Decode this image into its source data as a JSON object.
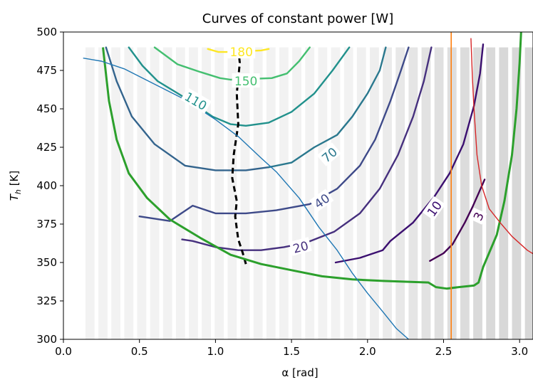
{
  "chart_data": {
    "type": "line",
    "title": "Curves of constant power [W]",
    "xlabel": "α [rad]",
    "ylabel_main": "T",
    "ylabel_sub": "h",
    "ylabel_unit": " [K]",
    "xlim": [
      0.0,
      3.1
    ],
    "ylim": [
      300,
      500
    ],
    "xticks": [
      0.0,
      0.5,
      1.0,
      1.5,
      2.0,
      2.5,
      3.0
    ],
    "xtick_labels": [
      "0.0",
      "0.5",
      "1.0",
      "1.5",
      "2.0",
      "2.5",
      "3.0"
    ],
    "yticks": [
      300,
      325,
      350,
      375,
      400,
      425,
      450,
      475,
      500
    ],
    "ytick_labels": [
      "300",
      "325",
      "350",
      "375",
      "400",
      "425",
      "450",
      "475",
      "500"
    ],
    "background_bars": {
      "x": [
        0.175,
        0.26,
        0.345,
        0.43,
        0.515,
        0.6,
        0.685,
        0.77,
        0.855,
        0.94,
        1.025,
        1.11,
        1.195,
        1.28,
        1.365,
        1.45,
        1.535,
        1.62,
        1.705,
        1.79,
        1.875,
        1.96,
        2.045,
        2.13,
        2.215,
        2.3,
        2.385,
        2.47,
        2.555,
        2.64,
        2.725,
        2.81,
        2.895,
        2.98,
        3.065
      ],
      "top": 490,
      "shades": [
        "#f2f2f2",
        "#f2f2f2",
        "#f2f2f2",
        "#f2f2f2",
        "#f2f2f2",
        "#f2f2f2",
        "#f2f2f2",
        "#f2f2f2",
        "#f2f2f2",
        "#f2f2f2",
        "#f2f2f2",
        "#f2f2f2",
        "#f2f2f2",
        "#f2f2f2",
        "#f2f2f2",
        "#f2f2f2",
        "#f2f2f2",
        "#f2f2f2",
        "#f2f2f2",
        "#f2f2f2",
        "#f2f2f2",
        "#f0f0f0",
        "#eeeeee",
        "#ebebeb",
        "#e8e8e8",
        "#e5e5e5",
        "#e2e2e2",
        "#e0e0e0",
        "#dedede",
        "#dcdcdc",
        "#dadada",
        "#d9d9d9",
        "#d8d8d8",
        "#d8d8d8",
        "#d8d8d8"
      ]
    },
    "contours": [
      {
        "label": "3",
        "color": "#440154",
        "label_at": [
          2.73,
          380
        ],
        "rotation": -65,
        "points": [
          [
            2.41,
            351
          ],
          [
            2.5,
            356
          ],
          [
            2.56,
            362
          ],
          [
            2.64,
            376
          ],
          [
            2.69,
            386
          ],
          [
            2.73,
            395
          ],
          [
            2.77,
            404
          ]
        ]
      },
      {
        "label": "10",
        "color": "#3b0f70",
        "label_at": [
          2.44,
          385
        ],
        "rotation": -55,
        "points": [
          [
            1.79,
            350
          ],
          [
            1.95,
            353
          ],
          [
            2.1,
            358
          ],
          [
            2.15,
            364
          ],
          [
            2.3,
            376
          ],
          [
            2.44,
            393
          ],
          [
            2.54,
            408
          ],
          [
            2.63,
            427
          ],
          [
            2.7,
            452
          ],
          [
            2.74,
            473
          ],
          [
            2.76,
            492
          ]
        ]
      },
      {
        "label": "20",
        "color": "#46307e",
        "label_at": [
          1.56,
          360
        ],
        "rotation": -15,
        "points": [
          [
            0.78,
            365
          ],
          [
            0.85,
            364
          ],
          [
            1.0,
            360
          ],
          [
            1.15,
            358
          ],
          [
            1.3,
            358
          ],
          [
            1.45,
            360
          ],
          [
            1.6,
            363
          ],
          [
            1.78,
            370
          ],
          [
            1.95,
            382
          ],
          [
            2.08,
            398
          ],
          [
            2.2,
            420
          ],
          [
            2.3,
            445
          ],
          [
            2.37,
            468
          ],
          [
            2.42,
            490
          ]
        ]
      },
      {
        "label": "40",
        "color": "#3e4a89",
        "label_at": [
          1.7,
          390
        ],
        "rotation": -35,
        "points": [
          [
            0.5,
            380
          ],
          [
            0.7,
            377
          ],
          [
            0.85,
            387
          ],
          [
            1.0,
            382
          ],
          [
            1.2,
            382
          ],
          [
            1.4,
            384
          ],
          [
            1.62,
            388
          ],
          [
            1.8,
            398
          ],
          [
            1.95,
            413
          ],
          [
            2.05,
            430
          ],
          [
            2.15,
            455
          ],
          [
            2.22,
            475
          ],
          [
            2.27,
            490
          ]
        ]
      },
      {
        "label": "",
        "color": "#33648d",
        "label_at": null,
        "rotation": 0,
        "points": [
          [
            0.28,
            490
          ],
          [
            0.35,
            468
          ],
          [
            0.45,
            445
          ],
          [
            0.6,
            427
          ],
          [
            0.8,
            413
          ],
          [
            1.0,
            410
          ],
          [
            1.2,
            410
          ],
          [
            1.35,
            412
          ]
        ]
      },
      {
        "label": "70",
        "color": "#2a788e",
        "label_at": [
          1.75,
          420
        ],
        "rotation": -40,
        "points": [
          [
            1.35,
            412
          ],
          [
            1.5,
            415
          ],
          [
            1.65,
            425
          ],
          [
            1.8,
            433
          ],
          [
            1.9,
            445
          ],
          [
            2.0,
            460
          ],
          [
            2.08,
            475
          ],
          [
            2.12,
            490
          ]
        ]
      },
      {
        "label": "110",
        "color": "#21918c",
        "label_at": [
          0.87,
          455
        ],
        "rotation": 30,
        "points": [
          [
            0.43,
            490
          ],
          [
            0.52,
            478
          ],
          [
            0.62,
            468
          ],
          [
            0.77,
            459
          ],
          [
            0.98,
            445
          ],
          [
            1.1,
            440
          ],
          [
            1.2,
            439
          ],
          [
            1.35,
            441
          ],
          [
            1.5,
            448
          ],
          [
            1.65,
            460
          ],
          [
            1.77,
            475
          ],
          [
            1.88,
            490
          ]
        ]
      },
      {
        "label": "150",
        "color": "#44bf70",
        "label_at": [
          1.2,
          468
        ],
        "rotation": 0,
        "points": [
          [
            0.6,
            490
          ],
          [
            0.75,
            479
          ],
          [
            0.9,
            474
          ],
          [
            1.03,
            470
          ],
          [
            1.1,
            469
          ],
          [
            1.37,
            470
          ],
          [
            1.47,
            473
          ],
          [
            1.55,
            481
          ],
          [
            1.62,
            490
          ]
        ]
      },
      {
        "label": "180",
        "color": "#fde725",
        "label_at": [
          1.17,
          487
        ],
        "rotation": 0,
        "points": [
          [
            0.95,
            489
          ],
          [
            1.02,
            487
          ],
          [
            1.07,
            487
          ],
          [
            1.3,
            488
          ],
          [
            1.35,
            489
          ]
        ]
      }
    ],
    "lines": [
      {
        "name": "optimum",
        "color": "#000000",
        "dash": "8,5",
        "width": 3,
        "points": [
          [
            1.2,
            349
          ],
          [
            1.18,
            356
          ],
          [
            1.15,
            365
          ],
          [
            1.14,
            372
          ],
          [
            1.13,
            380
          ],
          [
            1.14,
            390
          ],
          [
            1.11,
            405
          ],
          [
            1.12,
            420
          ],
          [
            1.15,
            440
          ],
          [
            1.14,
            460
          ],
          [
            1.16,
            480
          ],
          [
            1.15,
            489
          ]
        ]
      },
      {
        "name": "green-boundary",
        "color": "#2ca02c",
        "dash": "",
        "width": 3,
        "points": [
          [
            0.26,
            490
          ],
          [
            0.3,
            455
          ],
          [
            0.35,
            430
          ],
          [
            0.43,
            408
          ],
          [
            0.55,
            392
          ],
          [
            0.7,
            378
          ],
          [
            0.9,
            366
          ],
          [
            1.1,
            355
          ],
          [
            1.3,
            349
          ],
          [
            1.5,
            345
          ],
          [
            1.7,
            341
          ],
          [
            1.9,
            339
          ],
          [
            2.1,
            338
          ],
          [
            2.4,
            337
          ],
          [
            2.45,
            334
          ],
          [
            2.52,
            333
          ],
          [
            2.6,
            334
          ],
          [
            2.7,
            335
          ],
          [
            2.73,
            337
          ],
          [
            2.76,
            347
          ],
          [
            2.85,
            368
          ],
          [
            2.9,
            390
          ],
          [
            2.95,
            420
          ],
          [
            2.98,
            450
          ],
          [
            3.0,
            480
          ],
          [
            3.01,
            500
          ]
        ]
      },
      {
        "name": "blue-curve",
        "color": "#1f77b4",
        "dash": "",
        "width": 1.4,
        "points": [
          [
            0.13,
            483
          ],
          [
            0.25,
            481
          ],
          [
            0.4,
            476
          ],
          [
            0.6,
            466
          ],
          [
            0.8,
            456
          ],
          [
            1.0,
            443
          ],
          [
            1.15,
            432
          ],
          [
            1.3,
            418
          ],
          [
            1.4,
            409
          ],
          [
            1.55,
            392
          ],
          [
            1.68,
            373
          ],
          [
            1.8,
            358
          ],
          [
            1.9,
            343
          ],
          [
            2.0,
            330
          ],
          [
            2.1,
            318
          ],
          [
            2.19,
            307
          ],
          [
            2.27,
            300
          ]
        ]
      },
      {
        "name": "orange-vertical",
        "color": "#ff7f0e",
        "dash": "",
        "width": 1.6,
        "points": [
          [
            2.55,
            300
          ],
          [
            2.55,
            500
          ]
        ]
      },
      {
        "name": "red-curve",
        "color": "#d62728",
        "dash": "",
        "width": 1.4,
        "points": [
          [
            2.68,
            496
          ],
          [
            2.69,
            470
          ],
          [
            2.7,
            450
          ],
          [
            2.72,
            420
          ],
          [
            2.75,
            400
          ],
          [
            2.8,
            385
          ],
          [
            2.88,
            375
          ],
          [
            2.95,
            367
          ],
          [
            3.05,
            358
          ],
          [
            3.1,
            355
          ]
        ]
      }
    ]
  }
}
